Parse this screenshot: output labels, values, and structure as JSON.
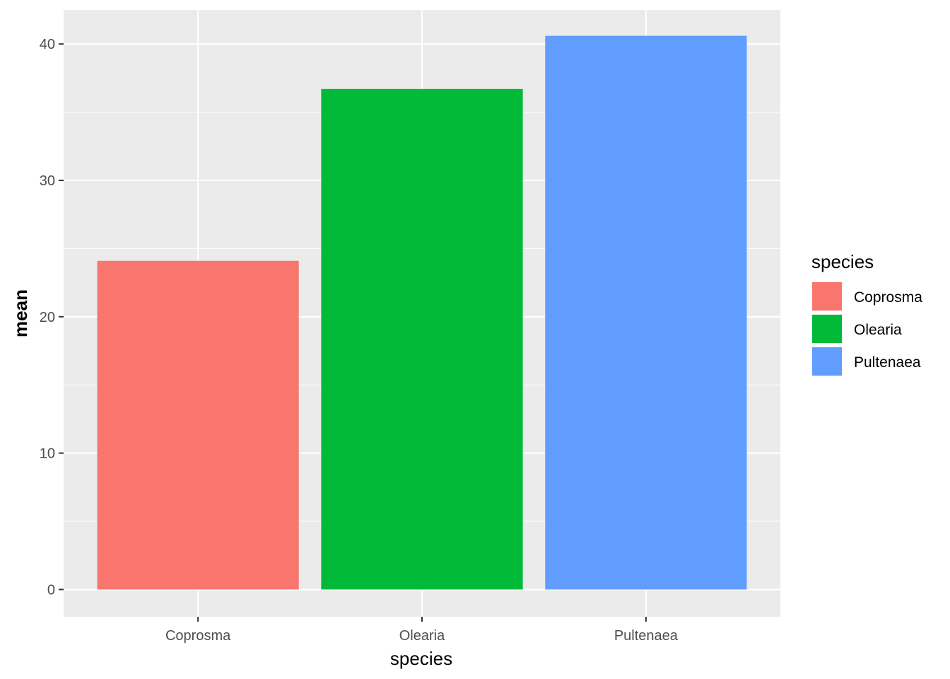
{
  "chart_data": {
    "type": "bar",
    "categories": [
      "Coprosma",
      "Olearia",
      "Pultenaea"
    ],
    "values": [
      24.1,
      36.7,
      40.6
    ],
    "colors": [
      "#F8766D",
      "#00BA38",
      "#619CFF"
    ],
    "xlabel": "species",
    "ylabel": "mean",
    "ylim": [
      -2,
      42.5
    ],
    "yticks": [
      0,
      10,
      20,
      30,
      40
    ],
    "grid": true,
    "legend": {
      "title": "species",
      "position": "right",
      "entries": [
        "Coprosma",
        "Olearia",
        "Pultenaea"
      ]
    },
    "panel_background": "#EBEBEB",
    "grid_color": "#FFFFFF"
  }
}
